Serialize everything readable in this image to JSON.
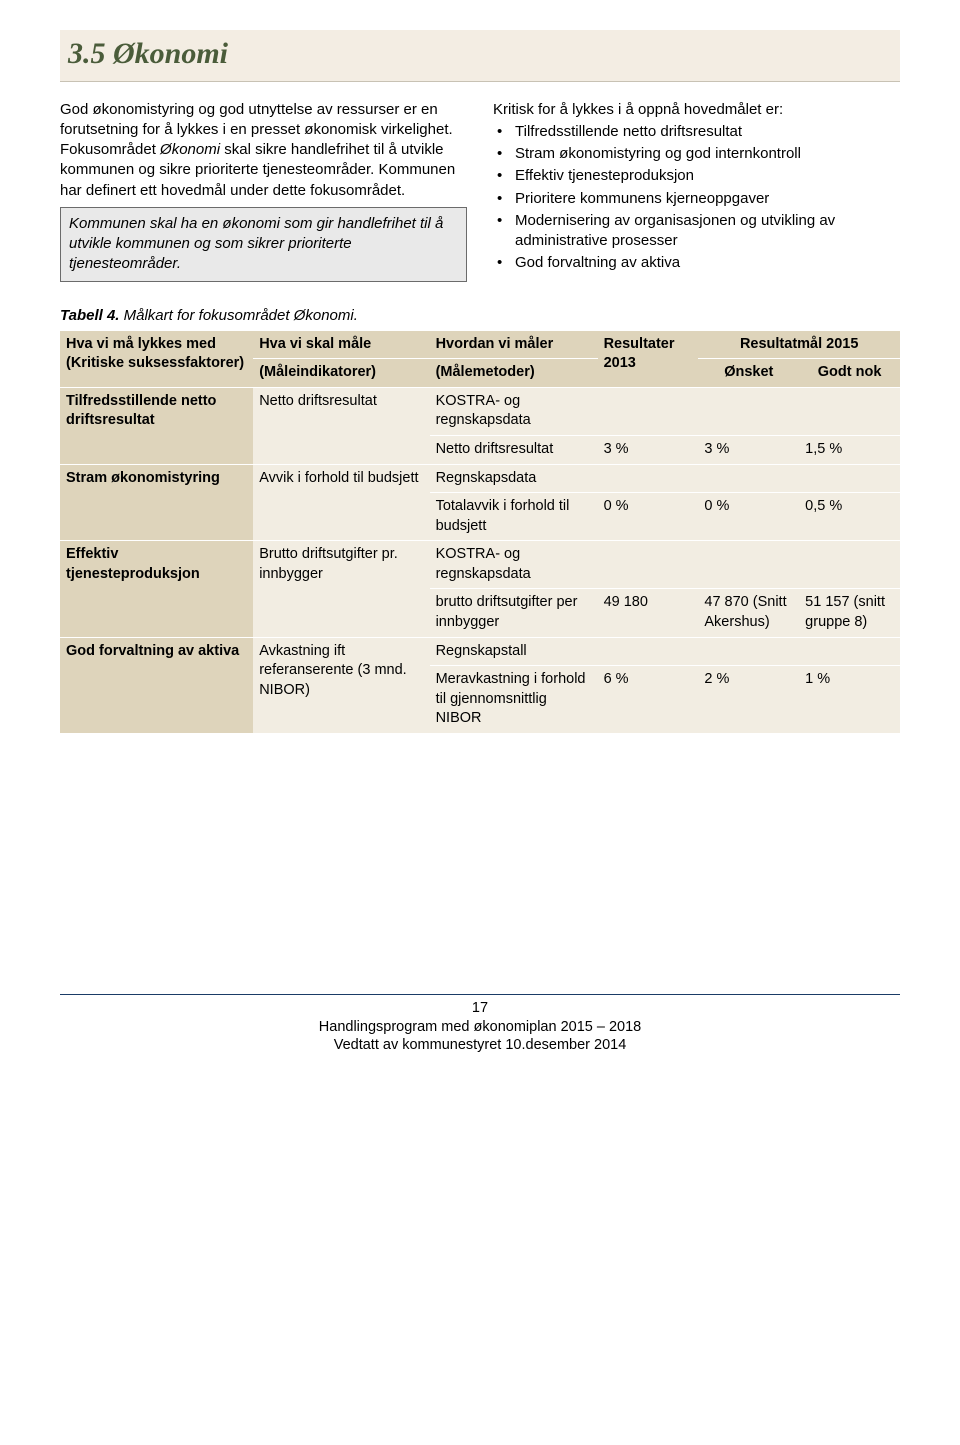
{
  "heading": "3.5 Økonomi",
  "left": {
    "p1": "God økonomistyring og god utnyttelse av ressurser er en forutsetning for å lykkes i en presset økonomisk virkelighet. Fokusområdet ",
    "em1": "Økonomi",
    "p1b": " skal sikre handlefrihet til å utvikle kommunen og sikre prioriterte tjenesteområder. Kommunen har definert ett hovedmål under dette fokusområdet.",
    "boxed": "Kommunen skal ha en økonomi som gir handlefrihet til å utvikle kommunen og som sikrer prioriterte tjenesteområder."
  },
  "right": {
    "intro": "Kritisk for å lykkes i å oppnå hovedmålet er:",
    "items": [
      "Tilfredsstillende netto driftsresultat",
      "Stram økonomistyring og god internkontroll",
      "Effektiv tjenesteproduksjon",
      "Prioritere kommunens kjerneoppgaver",
      "Modernisering av organisasjonen og utvikling av administrative prosesser",
      "God forvaltning av aktiva"
    ]
  },
  "caption_bold": "Tabell 4. ",
  "caption_rest": "Målkart for fokusområdet Økonomi.",
  "headers": {
    "h1a": "Hva vi må lykkes med (Kritiske suksessfaktorer)",
    "h2a": "Hva vi skal måle",
    "h2b": "(Måleindikatorer)",
    "h3a": "Hvordan vi måler",
    "h3b": "(Målemetoder)",
    "h4": "Resultater 2013",
    "h5": "Resultatmål 2015",
    "h5a": "Ønsket",
    "h5b": "Godt nok"
  },
  "rows": {
    "r1": {
      "factor": "Tilfredsstillende netto driftsresultat",
      "indicator": "Netto driftsresultat",
      "m1": "KOSTRA- og regnskapsdata",
      "m2": "Netto driftsresultat",
      "v_res": "3 %",
      "v_on": "3 %",
      "v_gn": "1,5 %"
    },
    "r2": {
      "factor": "Stram økonomistyring",
      "indicator": "Avvik i forhold til budsjett",
      "m1": "Regnskapsdata",
      "m2": "Totalavvik i forhold til budsjett",
      "v_res": "0 %",
      "v_on": "0 %",
      "v_gn": "0,5 %"
    },
    "r3": {
      "factor": "Effektiv tjenesteproduksjon",
      "indicator": "Brutto driftsutgifter pr. innbygger",
      "m1": "KOSTRA- og regnskapsdata",
      "m2": "brutto driftsutgifter per innbygger",
      "v_res": "49 180",
      "v_on": "47 870 (Snitt Akershus)",
      "v_gn": "51 157 (snitt gruppe 8)"
    },
    "r4": {
      "factor": "God forvaltning av aktiva",
      "indicator": "Avkastning ift referanserente (3 mnd. NIBOR)",
      "m1": "Regnskapstall",
      "m2": "Meravkastning i forhold til gjennomsnittlig NIBOR",
      "v_res": "6 %",
      "v_on": "2 %",
      "v_gn": "1 %"
    }
  },
  "footer": {
    "page": "17",
    "l1": "Handlingsprogram med økonomiplan 2015 – 2018",
    "l2": "Vedtatt av kommunestyret 10.desember 2014"
  }
}
